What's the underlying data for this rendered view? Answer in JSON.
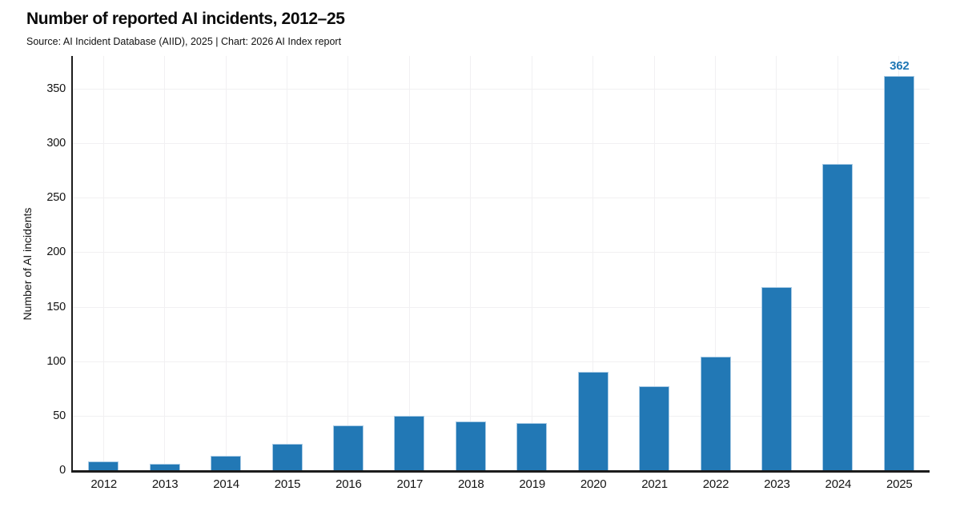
{
  "header": {
    "title": "Number of reported AI incidents, 2012–25",
    "subtitle": "Source: AI Incident Database (AIID), 2025 | Chart: 2026 AI Index report"
  },
  "colors": {
    "bar_fill": "#2278b5",
    "bar_border": "#a9cbe5",
    "value_label": "#1f77b4",
    "axis": "#1c1c1c",
    "gridline": "#f1f0f2",
    "text": "#141414",
    "background": "#ffffff"
  },
  "chart_data": {
    "type": "bar",
    "title": "Number of reported AI incidents, 2012–25",
    "subtitle": "Source: AI Incident Database (AIID), 2025 | Chart: 2026 AI Index report",
    "categories": [
      "2012",
      "2013",
      "2014",
      "2015",
      "2016",
      "2017",
      "2018",
      "2019",
      "2020",
      "2021",
      "2022",
      "2023",
      "2024",
      "2025"
    ],
    "values": [
      8,
      6,
      13,
      24,
      41,
      50,
      45,
      43,
      90,
      77,
      104,
      168,
      281,
      362
    ],
    "xlabel": "",
    "ylabel": "Number of AI incidents",
    "ylim": [
      0,
      380
    ],
    "yticks": [
      0,
      50,
      100,
      150,
      200,
      250,
      300,
      350
    ],
    "grid": true,
    "legend": false,
    "annotations": [
      {
        "category": "2025",
        "text": "362"
      }
    ]
  }
}
